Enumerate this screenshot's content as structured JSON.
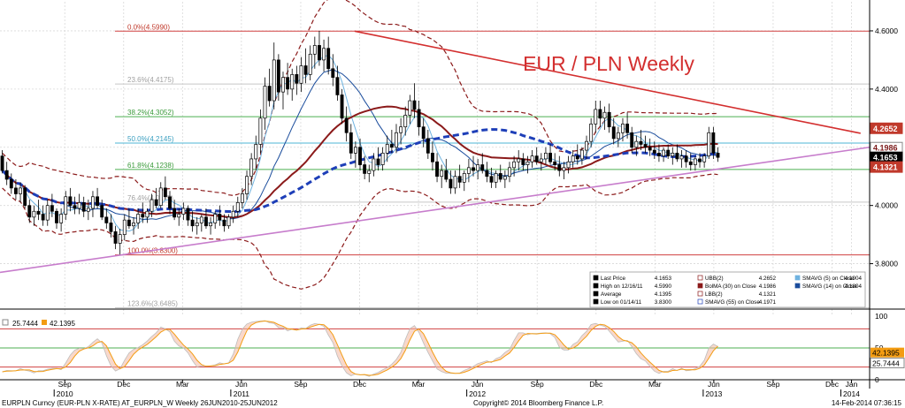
{
  "chart_data": [
    {
      "type": "candlestick",
      "title": "EUR / PLN Weekly",
      "ylim": [
        3.65,
        4.7
      ],
      "y_ticks": [
        "4.6000",
        "4.4000",
        "4.2000",
        "4.0000",
        "3.8000"
      ],
      "y_tick_values": [
        4.6,
        4.4,
        4.2,
        4.0,
        3.8
      ],
      "x_months": [
        {
          "label": "Sep",
          "t": 14.3
        },
        {
          "label": "Dec",
          "t": 27.3
        },
        {
          "label": "Mar",
          "t": 40.3
        },
        {
          "label": "Jun",
          "t": 53.3
        },
        {
          "label": "Sep",
          "t": 66.4
        },
        {
          "label": "Dec",
          "t": 79.4
        },
        {
          "label": "Mar",
          "t": 92.4
        },
        {
          "label": "Jun",
          "t": 105.4
        },
        {
          "label": "Sep",
          "t": 118.6
        },
        {
          "label": "Dec",
          "t": 131.6
        },
        {
          "label": "Mar",
          "t": 144.6
        },
        {
          "label": "Jun",
          "t": 157.6
        },
        {
          "label": "Sep",
          "t": 170.7
        },
        {
          "label": "Dec",
          "t": 183.7
        },
        {
          "label": "Jan",
          "t": 188
        }
      ],
      "x_years": [
        {
          "label": "2010",
          "t": 14.3
        },
        {
          "label": "2011",
          "t": 53.3
        },
        {
          "label": "2012",
          "t": 105.4
        },
        {
          "label": "2013",
          "t": 157.6
        },
        {
          "label": "2014",
          "t": 188
        }
      ],
      "fib_levels": [
        {
          "label": "0.0%(4.5990)",
          "value": 4.599,
          "color": "#d04040",
          "label_color": "#c0392b"
        },
        {
          "label": "23.6%(4.4175)",
          "value": 4.4175,
          "color": "#c8c8c8",
          "label_color": "#a0a0a0"
        },
        {
          "label": "38.2%(4.3052)",
          "value": 4.3052,
          "color": "#4caf50",
          "label_color": "#3a9a3a"
        },
        {
          "label": "50.0%(4.2145)",
          "value": 4.2145,
          "color": "#4db6d6",
          "label_color": "#3a9fc0"
        },
        {
          "label": "61.8%(4.1238)",
          "value": 4.1238,
          "color": "#4caf50",
          "label_color": "#3a9a3a"
        },
        {
          "label": "76.4%(4.0115)",
          "value": 4.0115,
          "color": "#c8c8c8",
          "label_color": "#a0a0a0"
        },
        {
          "label": "100.0%(3.8300)",
          "value": 3.83,
          "color": "#d04040",
          "label_color": "#c0392b"
        },
        {
          "label": "123.6%(3.6485)",
          "value": 3.6485,
          "color": "#c8c8c8",
          "label_color": "#a0a0a0"
        }
      ],
      "price_badges": [
        {
          "text": "4.2652",
          "value": 4.2652,
          "bg": "#c0392b",
          "fg": "#ffffff"
        },
        {
          "text": "4.1986",
          "value": 4.1986,
          "bg": "#ffffff",
          "fg": "#7b1a1a"
        },
        {
          "text": "4.1653",
          "value": 4.1653,
          "bg": "#000000",
          "fg": "#ffffff"
        },
        {
          "text": "4.1321",
          "value": 4.1321,
          "bg": "#c0392b",
          "fg": "#ffffff"
        }
      ],
      "trendlines": [
        {
          "name": "resistance",
          "color": "#d32f2f",
          "from": [
            78.3,
            4.599
          ],
          "to": [
            190,
            4.248
          ]
        },
        {
          "name": "support",
          "color": "#c77dcc",
          "from": [
            0,
            3.77
          ],
          "to": [
            192,
            4.2
          ]
        }
      ],
      "ohlc": [
        [
          4.17,
          4.19,
          4.11,
          4.12
        ],
        [
          4.12,
          4.15,
          4.07,
          4.09
        ],
        [
          4.09,
          4.11,
          4.04,
          4.06
        ],
        [
          4.06,
          4.09,
          4.02,
          4.04
        ],
        [
          4.04,
          4.08,
          4.01,
          4.06
        ],
        [
          4.06,
          4.07,
          3.99,
          4.0
        ],
        [
          4.0,
          4.02,
          3.94,
          3.96
        ],
        [
          3.96,
          4.0,
          3.93,
          3.98
        ],
        [
          3.98,
          4.02,
          3.95,
          3.97
        ],
        [
          3.97,
          4.0,
          3.93,
          3.95
        ],
        [
          3.95,
          4.02,
          3.93,
          4.0
        ],
        [
          4.0,
          4.04,
          3.96,
          3.98
        ],
        [
          3.98,
          3.99,
          3.92,
          3.94
        ],
        [
          3.94,
          3.99,
          3.91,
          3.97
        ],
        [
          3.97,
          4.05,
          3.95,
          4.03
        ],
        [
          4.03,
          4.06,
          3.98,
          4.0
        ],
        [
          4.0,
          4.03,
          3.97,
          3.99
        ],
        [
          3.99,
          4.04,
          3.97,
          4.01
        ],
        [
          4.01,
          4.03,
          3.96,
          3.98
        ],
        [
          3.98,
          4.02,
          3.95,
          3.99
        ],
        [
          3.99,
          4.05,
          3.96,
          4.03
        ],
        [
          4.03,
          4.06,
          3.99,
          4.0
        ],
        [
          4.0,
          4.02,
          3.95,
          3.96
        ],
        [
          3.96,
          3.99,
          3.92,
          3.94
        ],
        [
          3.94,
          3.97,
          3.89,
          3.91
        ],
        [
          3.91,
          3.93,
          3.85,
          3.87
        ],
        [
          3.87,
          3.92,
          3.83,
          3.9
        ],
        [
          3.9,
          3.97,
          3.88,
          3.95
        ],
        [
          3.95,
          3.99,
          3.92,
          3.93
        ],
        [
          3.93,
          3.96,
          3.9,
          3.94
        ],
        [
          3.94,
          3.99,
          3.92,
          3.97
        ],
        [
          3.97,
          4.01,
          3.94,
          3.96
        ],
        [
          3.96,
          3.99,
          3.94,
          3.98
        ],
        [
          3.98,
          4.04,
          3.96,
          4.02
        ],
        [
          4.02,
          4.06,
          3.99,
          4.0
        ],
        [
          4.0,
          4.08,
          3.99,
          4.06
        ],
        [
          4.06,
          4.1,
          4.02,
          4.03
        ],
        [
          4.03,
          4.05,
          3.97,
          3.99
        ],
        [
          3.99,
          4.02,
          3.95,
          3.96
        ],
        [
          3.96,
          3.99,
          3.93,
          3.97
        ],
        [
          3.97,
          4.01,
          3.95,
          3.99
        ],
        [
          3.99,
          4.0,
          3.93,
          3.95
        ],
        [
          3.95,
          3.98,
          3.91,
          3.93
        ],
        [
          3.93,
          3.96,
          3.9,
          3.94
        ],
        [
          3.94,
          3.97,
          3.91,
          3.96
        ],
        [
          3.96,
          3.99,
          3.92,
          3.93
        ],
        [
          3.93,
          3.96,
          3.9,
          3.94
        ],
        [
          3.94,
          3.98,
          3.92,
          3.97
        ],
        [
          3.97,
          4.0,
          3.93,
          3.95
        ],
        [
          3.95,
          3.97,
          3.91,
          3.93
        ],
        [
          3.93,
          3.97,
          3.92,
          3.96
        ],
        [
          3.96,
          4.0,
          3.94,
          3.98
        ],
        [
          3.98,
          4.03,
          3.96,
          4.01
        ],
        [
          4.01,
          4.06,
          3.99,
          4.04
        ],
        [
          4.04,
          4.12,
          4.02,
          4.1
        ],
        [
          4.1,
          4.18,
          4.07,
          4.16
        ],
        [
          4.16,
          4.24,
          4.12,
          4.21
        ],
        [
          4.21,
          4.33,
          4.18,
          4.3
        ],
        [
          4.3,
          4.44,
          4.26,
          4.41
        ],
        [
          4.41,
          4.47,
          4.34,
          4.36
        ],
        [
          4.36,
          4.56,
          4.33,
          4.5
        ],
        [
          4.5,
          4.52,
          4.36,
          4.39
        ],
        [
          4.39,
          4.46,
          4.33,
          4.44
        ],
        [
          4.44,
          4.49,
          4.38,
          4.4
        ],
        [
          4.4,
          4.47,
          4.36,
          4.45
        ],
        [
          4.45,
          4.48,
          4.38,
          4.42
        ],
        [
          4.42,
          4.51,
          4.39,
          4.48
        ],
        [
          4.48,
          4.54,
          4.42,
          4.45
        ],
        [
          4.45,
          4.55,
          4.43,
          4.52
        ],
        [
          4.52,
          4.58,
          4.47,
          4.55
        ],
        [
          4.55,
          4.6,
          4.48,
          4.5
        ],
        [
          4.5,
          4.57,
          4.46,
          4.54
        ],
        [
          4.54,
          4.58,
          4.45,
          4.47
        ],
        [
          4.47,
          4.52,
          4.41,
          4.44
        ],
        [
          4.44,
          4.48,
          4.36,
          4.38
        ],
        [
          4.38,
          4.4,
          4.28,
          4.3
        ],
        [
          4.3,
          4.34,
          4.22,
          4.25
        ],
        [
          4.25,
          4.28,
          4.16,
          4.18
        ],
        [
          4.18,
          4.22,
          4.13,
          4.2
        ],
        [
          4.2,
          4.23,
          4.12,
          4.14
        ],
        [
          4.14,
          4.17,
          4.09,
          4.11
        ],
        [
          4.11,
          4.14,
          4.08,
          4.12
        ],
        [
          4.12,
          4.18,
          4.1,
          4.16
        ],
        [
          4.16,
          4.2,
          4.12,
          4.14
        ],
        [
          4.14,
          4.2,
          4.12,
          4.18
        ],
        [
          4.18,
          4.24,
          4.15,
          4.21
        ],
        [
          4.21,
          4.26,
          4.18,
          4.2
        ],
        [
          4.2,
          4.28,
          4.18,
          4.25
        ],
        [
          4.25,
          4.3,
          4.21,
          4.27
        ],
        [
          4.27,
          4.34,
          4.24,
          4.31
        ],
        [
          4.31,
          4.38,
          4.28,
          4.36
        ],
        [
          4.36,
          4.42,
          4.3,
          4.33
        ],
        [
          4.33,
          4.36,
          4.24,
          4.27
        ],
        [
          4.27,
          4.3,
          4.2,
          4.23
        ],
        [
          4.23,
          4.26,
          4.16,
          4.18
        ],
        [
          4.18,
          4.22,
          4.12,
          4.15
        ],
        [
          4.15,
          4.18,
          4.08,
          4.1
        ],
        [
          4.1,
          4.14,
          4.06,
          4.12
        ],
        [
          4.12,
          4.16,
          4.08,
          4.09
        ],
        [
          4.09,
          4.12,
          4.04,
          4.06
        ],
        [
          4.06,
          4.12,
          4.04,
          4.1
        ],
        [
          4.1,
          4.14,
          4.06,
          4.08
        ],
        [
          4.08,
          4.12,
          4.05,
          4.11
        ],
        [
          4.11,
          4.16,
          4.08,
          4.13
        ],
        [
          4.13,
          4.17,
          4.1,
          4.12
        ],
        [
          4.12,
          4.16,
          4.09,
          4.14
        ],
        [
          4.14,
          4.18,
          4.11,
          4.12
        ],
        [
          4.12,
          4.15,
          4.08,
          4.1
        ],
        [
          4.1,
          4.13,
          4.06,
          4.08
        ],
        [
          4.08,
          4.12,
          4.06,
          4.11
        ],
        [
          4.11,
          4.14,
          4.08,
          4.09
        ],
        [
          4.09,
          4.12,
          4.06,
          4.1
        ],
        [
          4.1,
          4.15,
          4.08,
          4.13
        ],
        [
          4.13,
          4.17,
          4.1,
          4.15
        ],
        [
          4.15,
          4.19,
          4.12,
          4.16
        ],
        [
          4.16,
          4.18,
          4.12,
          4.14
        ],
        [
          4.14,
          4.17,
          4.11,
          4.15
        ],
        [
          4.15,
          4.19,
          4.13,
          4.17
        ],
        [
          4.17,
          4.2,
          4.14,
          4.15
        ],
        [
          4.15,
          4.18,
          4.12,
          4.16
        ],
        [
          4.16,
          4.2,
          4.14,
          4.18
        ],
        [
          4.18,
          4.21,
          4.14,
          4.15
        ],
        [
          4.15,
          4.18,
          4.12,
          4.14
        ],
        [
          4.14,
          4.17,
          4.1,
          4.12
        ],
        [
          4.12,
          4.15,
          4.09,
          4.13
        ],
        [
          4.13,
          4.17,
          4.11,
          4.15
        ],
        [
          4.15,
          4.19,
          4.13,
          4.17
        ],
        [
          4.17,
          4.21,
          4.14,
          4.16
        ],
        [
          4.16,
          4.2,
          4.14,
          4.19
        ],
        [
          4.19,
          4.24,
          4.16,
          4.22
        ],
        [
          4.22,
          4.3,
          4.2,
          4.28
        ],
        [
          4.28,
          4.36,
          4.25,
          4.33
        ],
        [
          4.33,
          4.36,
          4.27,
          4.3
        ],
        [
          4.3,
          4.34,
          4.26,
          4.32
        ],
        [
          4.32,
          4.35,
          4.25,
          4.27
        ],
        [
          4.27,
          4.3,
          4.21,
          4.23
        ],
        [
          4.23,
          4.27,
          4.2,
          4.25
        ],
        [
          4.25,
          4.3,
          4.22,
          4.28
        ],
        [
          4.28,
          4.32,
          4.23,
          4.25
        ],
        [
          4.25,
          4.27,
          4.18,
          4.2
        ],
        [
          4.2,
          4.24,
          4.17,
          4.22
        ],
        [
          4.22,
          4.26,
          4.19,
          4.21
        ],
        [
          4.21,
          4.24,
          4.18,
          4.2
        ],
        [
          4.2,
          4.23,
          4.17,
          4.19
        ],
        [
          4.19,
          4.22,
          4.16,
          4.18
        ],
        [
          4.18,
          4.21,
          4.15,
          4.17
        ],
        [
          4.17,
          4.2,
          4.15,
          4.19
        ],
        [
          4.19,
          4.21,
          4.16,
          4.17
        ],
        [
          4.17,
          4.2,
          4.14,
          4.18
        ],
        [
          4.18,
          4.21,
          4.15,
          4.16
        ],
        [
          4.16,
          4.19,
          4.13,
          4.17
        ],
        [
          4.17,
          4.19,
          4.13,
          4.15
        ],
        [
          4.15,
          4.18,
          4.12,
          4.14
        ],
        [
          4.14,
          4.17,
          4.12,
          4.16
        ],
        [
          4.16,
          4.18,
          4.13,
          4.15
        ],
        [
          4.15,
          4.18,
          4.13,
          4.17
        ],
        [
          4.17,
          4.27,
          4.16,
          4.25
        ],
        [
          4.25,
          4.27,
          4.16,
          4.18
        ],
        [
          4.18,
          4.2,
          4.15,
          4.1653
        ]
      ]
    },
    {
      "type": "line",
      "name": "oscillator",
      "ylim": [
        0,
        100
      ],
      "y_ticks": [
        "100",
        "50",
        "0"
      ],
      "y_tick_values": [
        100,
        50,
        0
      ],
      "levels": [
        80,
        50,
        20
      ],
      "series": [
        {
          "value": 25.7444,
          "color": "#e8a070"
        },
        {
          "value": 42.1395,
          "color": "#f39c12"
        }
      ]
    }
  ],
  "legend": {
    "rows": [
      {
        "left_marker": "last-price",
        "left": "Last Price",
        "left_val": "4.1653",
        "right_marker": "ubb",
        "right": "UBB(2)",
        "right_val": "4.2652",
        "far_marker": "smavg5",
        "far": "SMAVG (5) on Close",
        "far_val": "4.1904"
      },
      {
        "left_marker": "high",
        "left": "High on 12/16/11",
        "left_val": "4.5990",
        "right_marker": "bolma",
        "right": "BolMA (30) on Close",
        "right_val": "4.1986",
        "far_marker": "smavg14",
        "far": "SMAVG (14) on Close",
        "far_val": "4.1804"
      },
      {
        "left_marker": "average",
        "left": "Average",
        "left_val": "4.1395",
        "right_marker": "lbb",
        "right": "LBB(2)",
        "right_val": "4.1321",
        "far_marker": "",
        "far": "",
        "far_val": ""
      },
      {
        "left_marker": "low",
        "left": "Low on 01/14/11",
        "left_val": "3.8300",
        "right_marker": "smavg55",
        "right": "SMAVG (55) on Close",
        "right_val": "4.1971",
        "far_marker": "",
        "far": "",
        "far_val": ""
      }
    ]
  },
  "colors": {
    "up": "#2e8b57",
    "down": "#000000",
    "bolma": "#8b1a1a",
    "bands": "#8b1a1a",
    "smavg55": "#1e3fb8",
    "smavg5": "#6fb3e0",
    "smavg14": "#1a4c9c",
    "title": "#d32f2f"
  },
  "footer": {
    "left": "EURPLN Curncy (EUR-PLN X-RATE) AT_EURPLN_W  Weekly 26JUN2010-25JUN2012",
    "center": "Copyright© 2014 Bloomberg Finance L.P.",
    "right": "14-Feb-2014 07:36:15"
  }
}
